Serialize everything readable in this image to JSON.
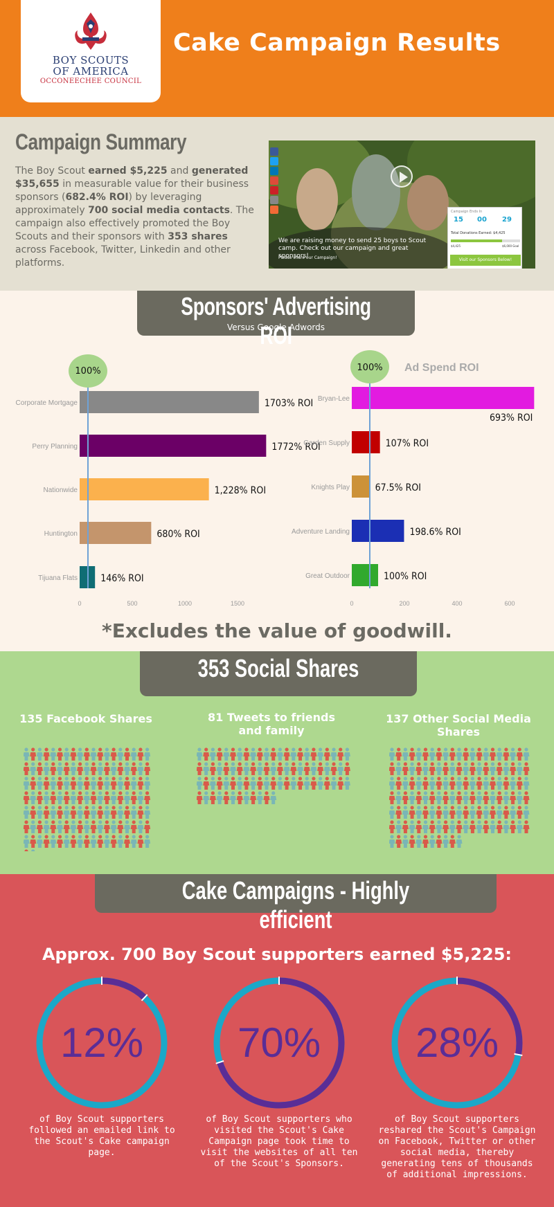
{
  "header": {
    "title": "Cake Campaign Results",
    "logo": {
      "line1": "BOY SCOUTS",
      "line2": "OF AMERICA",
      "line3": "OCCONEECHEE COUNCIL"
    }
  },
  "summary": {
    "title": "Campaign Summary",
    "text": [
      {
        "t": "The Boy Scout "
      },
      {
        "t": "earned $5,225",
        "b": true
      },
      {
        "t": " and "
      },
      {
        "t": "generated $35,655",
        "b": true
      },
      {
        "t": " in measurable value for their business sponsors ("
      },
      {
        "t": "682.4% ROI",
        "b": true
      },
      {
        "t": ") by leveraging approximately "
      },
      {
        "t": "700 social media contacts",
        "b": true
      },
      {
        "t": ". The campaign also effectively promoted the Boy Scouts and their sponsors with "
      },
      {
        "t": "353 shares",
        "b": true
      },
      {
        "t": " across Facebook, Twitter, Linkedin and other platforms."
      }
    ],
    "video": {
      "caption": "We are raising money to send 25 boys to Scout camp. Check out our campaign and great sponsors!",
      "share_text": "Please share our Campaign!",
      "widget_label": "Campaign Ends In",
      "countdown": [
        "15",
        "00",
        "29"
      ],
      "donations_label": "Total Donations Earned: $4,425",
      "bar_low": "$4,425",
      "bar_high": "$6,000 Goal",
      "progress": 0.74,
      "button": "Visit our Sponsors Below!"
    }
  },
  "roi": {
    "title": "Sponsors' Advertising ROI",
    "subtitle": "Versus Google Adwords",
    "footnote": "*Excludes the value of goodwill."
  },
  "chart_data": [
    {
      "type": "bar",
      "orientation": "horizontal",
      "categories": [
        "Corporate Mortgage",
        "Perry Planning",
        "Nationwide",
        "Huntington",
        "Tijuana Flats"
      ],
      "values": [
        1703,
        1772,
        1228,
        680,
        146
      ],
      "value_labels": [
        "1703% ROI",
        "1772% ROI",
        "1,228% ROI",
        "680% ROI",
        "146% ROI"
      ],
      "colors": [
        "#888888",
        "#6b0066",
        "#fbb14d",
        "#c4956c",
        "#0f6d74"
      ],
      "xticks": [
        0,
        500,
        1000,
        1500
      ],
      "xlim": [
        0,
        1800
      ],
      "reference_line": {
        "value": 100,
        "label": "100%"
      }
    },
    {
      "type": "bar",
      "orientation": "horizontal",
      "title": "Ad Spend ROI",
      "categories": [
        "Bryan-Lee",
        "Garden Supply",
        "Knights Play",
        "Adventure Landing",
        "Great Outdoor"
      ],
      "values": [
        693,
        107,
        67.5,
        198.6,
        100
      ],
      "value_labels": [
        "693% ROI",
        "107% ROI",
        "67.5% ROI",
        "198.6% ROI",
        "100% ROI"
      ],
      "colors": [
        "#e21be0",
        "#c10000",
        "#cc9239",
        "#1b2fb4",
        "#31a92d"
      ],
      "xticks": [
        0,
        200,
        400,
        600
      ],
      "xlim": [
        0,
        700
      ],
      "reference_line": {
        "value": 100,
        "label": "100%"
      }
    }
  ],
  "social": {
    "title": "353 Social Shares",
    "columns": [
      {
        "label": "135 Facebook Shares",
        "count": 135
      },
      {
        "label": "81 Tweets to friends and family",
        "count": 81
      },
      {
        "label": "137 Other Social Media Shares",
        "count": 137
      }
    ]
  },
  "efficiency": {
    "title": "Cake Campaigns - Highly efficient",
    "subtitle": "Approx. 700 Boy Scout supporters earned $5,225:",
    "stats": [
      {
        "value": 12,
        "label": "12%",
        "desc": "of Boy Scout supporters followed an emailed link to the Scout's Cake campaign page."
      },
      {
        "value": 70,
        "label": "70%",
        "desc": "of Boy Scout supporters who visited the Scout's Cake Campaign page took time to visit the websites of all ten of the Scout's Sponsors."
      },
      {
        "value": 28,
        "label": "28%",
        "desc": "of Boy Scout supporters reshared the Scout's Campaign on Facebook, Twitter or other social media, thereby generating tens of thousands of additional impressions."
      }
    ],
    "colors": {
      "track": "#1ba8c8",
      "fill": "#5a2d96"
    }
  }
}
